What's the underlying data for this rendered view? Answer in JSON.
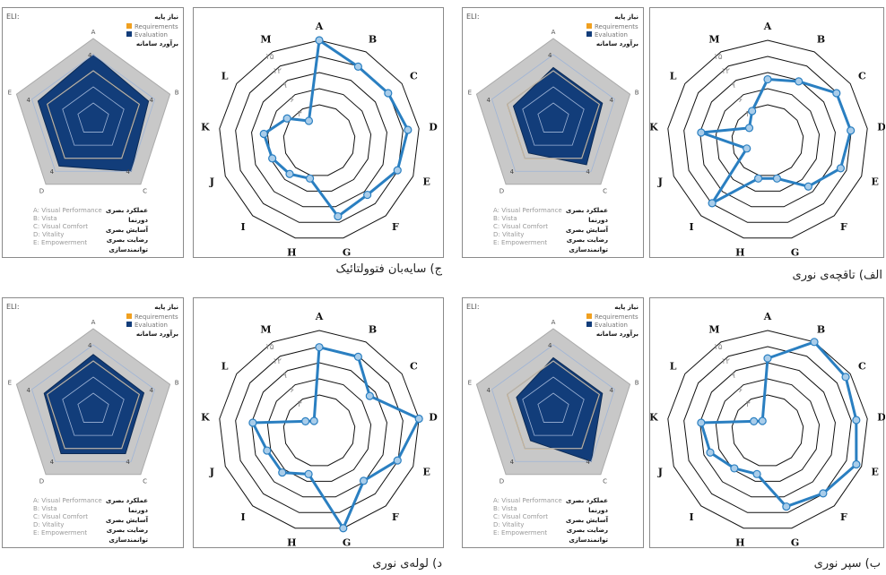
{
  "eli_labels": {
    "corner": "ELI:",
    "legend": {
      "title_fa": "نیاز پایه",
      "requirements": "Requirements",
      "evaluation": "Evaluation",
      "estimate_fa": "برآورد سامانه"
    },
    "axes": [
      "A",
      "B",
      "C",
      "D",
      "E"
    ],
    "criteria_en": [
      "A: Visual Performance",
      "B: Vista",
      "C: Visual Comfort",
      "D: Vitality",
      "E: Empowerment"
    ],
    "criteria_fa": [
      "عملکرد بصری",
      "دورنما",
      "آسایش بصری",
      "رضایت بصری",
      "توانمندسازی"
    ],
    "colors": {
      "frame": "#c8c8c8",
      "evaluation": "#123d7a",
      "requirements": "#f0a020"
    }
  },
  "radar_labels": {
    "axes": [
      "A",
      "B",
      "C",
      "D",
      "E",
      "F",
      "G",
      "H",
      "I",
      "J",
      "K",
      "L",
      "M"
    ],
    "ring_ticks": [
      "۳",
      "۶",
      "۹",
      "۱۲",
      "۱۵"
    ],
    "color": "#2a7fc1"
  },
  "panels": [
    {
      "caption": "ج) سایه‌بان فتوولتائیک"
    },
    {
      "caption": "الف) تاقچه‌ی نوری"
    },
    {
      "caption": "د) لوله‌ی نوری"
    },
    {
      "caption": "ب) سپر نوری"
    }
  ],
  "chart_data": [
    {
      "type": "radar",
      "title": "ج) سایه‌بان فتوولتائیک",
      "axes": [
        "A",
        "B",
        "C",
        "D",
        "E",
        "F",
        "G",
        "H",
        "I",
        "J",
        "K",
        "L",
        "M"
      ],
      "rmax": 18,
      "series": [
        {
          "values": [
            18,
            15,
            15,
            16,
            15,
            13,
            14,
            7,
            8,
            9,
            10,
            7,
            4
          ]
        }
      ]
    },
    {
      "type": "radar",
      "title": "الف) تاقچه‌ی نوری",
      "axes": [
        "A",
        "B",
        "C",
        "D",
        "E",
        "F",
        "G",
        "H",
        "I",
        "J",
        "K",
        "L",
        "M"
      ],
      "rmax": 18,
      "series": [
        {
          "values": [
            11,
            12,
            15,
            15,
            14,
            11,
            7,
            7,
            15,
            4,
            12,
            4,
            6
          ]
        }
      ]
    },
    {
      "type": "radar",
      "title": "د) لوله‌ی نوری",
      "axes": [
        "A",
        "B",
        "C",
        "D",
        "E",
        "F",
        "G",
        "H",
        "I",
        "J",
        "K",
        "L",
        "M"
      ],
      "rmax": 18,
      "series": [
        {
          "values": [
            15,
            15,
            11,
            18,
            15,
            12,
            18,
            8,
            10,
            10,
            12,
            3,
            2
          ]
        }
      ]
    },
    {
      "type": "radar",
      "title": "ب) سپر نوری",
      "axes": [
        "A",
        "B",
        "C",
        "D",
        "E",
        "F",
        "G",
        "H",
        "I",
        "J",
        "K",
        "L",
        "M"
      ],
      "rmax": 18,
      "series": [
        {
          "values": [
            13,
            18,
            17,
            16,
            17,
            15,
            14,
            8,
            9,
            11,
            12,
            3,
            2
          ]
        }
      ]
    },
    {
      "type": "radar",
      "title": "ELI",
      "axes": [
        "A",
        "B",
        "C",
        "D",
        "E"
      ],
      "rmax": 5,
      "series": [
        {
          "name": "Requirements",
          "values": [
            3,
            3,
            3,
            3,
            3
          ]
        },
        {
          "name": "Evaluation",
          "values": [
            4,
            3.6,
            4,
            3.6,
            3.6
          ]
        }
      ]
    },
    {
      "type": "radar",
      "title": "ELI",
      "axes": [
        "A",
        "B",
        "C",
        "D",
        "E"
      ],
      "rmax": 5,
      "series": [
        {
          "name": "Requirements",
          "values": [
            3,
            3,
            3,
            3,
            3
          ]
        },
        {
          "name": "Evaluation",
          "values": [
            3.2,
            3.2,
            3.5,
            2.6,
            2.6
          ]
        }
      ]
    },
    {
      "type": "radar",
      "title": "ELI",
      "axes": [
        "A",
        "B",
        "C",
        "D",
        "E"
      ],
      "rmax": 5,
      "series": [
        {
          "name": "Requirements",
          "values": [
            3,
            3,
            3,
            3,
            3
          ]
        },
        {
          "name": "Evaluation",
          "values": [
            3.4,
            3.3,
            3.4,
            3.4,
            3.2
          ]
        }
      ]
    },
    {
      "type": "radar",
      "title": "ELI",
      "axes": [
        "A",
        "B",
        "C",
        "D",
        "E"
      ],
      "rmax": 5,
      "series": [
        {
          "name": "Requirements",
          "values": [
            3,
            3,
            3,
            3,
            3
          ]
        },
        {
          "name": "Evaluation",
          "values": [
            3.2,
            3.2,
            4,
            2.4,
            2.4
          ]
        }
      ]
    }
  ]
}
